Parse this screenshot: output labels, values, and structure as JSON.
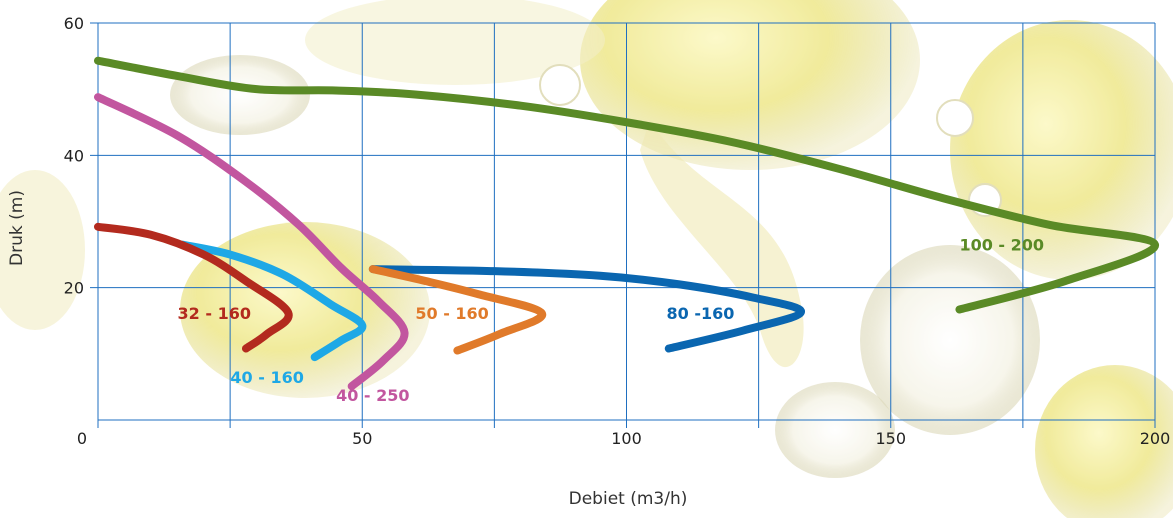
{
  "chart_data": {
    "type": "line",
    "title": "",
    "xlabel": "Debiet (m3/h)",
    "ylabel": "Druk (m)",
    "xlim": [
      0,
      200
    ],
    "ylim": [
      0,
      60
    ],
    "x_ticks": [
      0,
      50,
      100,
      150,
      200
    ],
    "y_ticks": [
      20,
      40,
      60
    ],
    "x_gridlines": [
      0,
      25,
      50,
      75,
      100,
      125,
      150,
      175,
      200
    ],
    "y_gridlines": [
      20,
      40,
      60
    ],
    "grid": true,
    "grid_color": "#1f6fc0",
    "series": [
      {
        "name": "100 - 200",
        "color": "#5a8a26",
        "points": [
          [
            0,
            54.3
          ],
          [
            15,
            52
          ],
          [
            30,
            50
          ],
          [
            45,
            49.8
          ],
          [
            60,
            49.2
          ],
          [
            80,
            47.5
          ],
          [
            100,
            45
          ],
          [
            120,
            42
          ],
          [
            140,
            38
          ],
          [
            160,
            33.5
          ],
          [
            180,
            29.5
          ],
          [
            200,
            26.5
          ],
          [
            183,
            21
          ],
          [
            163,
            16.7
          ]
        ]
      },
      {
        "name": "80 -160",
        "color": "#0a66b0",
        "points": [
          [
            52,
            22.8
          ],
          [
            75,
            22.5
          ],
          [
            95,
            21.8
          ],
          [
            110,
            20.5
          ],
          [
            124,
            18.5
          ],
          [
            133,
            16.3
          ],
          [
            122,
            13.5
          ],
          [
            108,
            10.8
          ]
        ]
      },
      {
        "name": "50 - 160",
        "color": "#e07a2a",
        "points": [
          [
            52,
            22.8
          ],
          [
            62,
            21
          ],
          [
            72,
            19
          ],
          [
            84,
            16.1
          ],
          [
            76,
            13
          ],
          [
            68,
            10.5
          ]
        ]
      },
      {
        "name": "40 - 250",
        "color": "#c2569f",
        "points": [
          [
            0,
            48.8
          ],
          [
            15,
            43
          ],
          [
            28,
            36
          ],
          [
            38,
            29.5
          ],
          [
            46,
            23
          ],
          [
            53,
            18
          ],
          [
            58,
            13.2
          ],
          [
            54,
            9
          ],
          [
            48,
            5.1
          ]
        ]
      },
      {
        "name": "40 - 160",
        "color": "#1ea8e6",
        "points": [
          [
            16,
            26.5
          ],
          [
            25,
            25
          ],
          [
            35,
            22
          ],
          [
            44,
            17.5
          ],
          [
            50,
            14.3
          ],
          [
            46,
            12
          ],
          [
            41,
            9.5
          ]
        ]
      },
      {
        "name": "32 - 160",
        "color": "#b32a1e",
        "points": [
          [
            0,
            29.2
          ],
          [
            10,
            28
          ],
          [
            20,
            25
          ],
          [
            28,
            21
          ],
          [
            36,
            16.2
          ],
          [
            32,
            13
          ],
          [
            28,
            10.8
          ]
        ]
      }
    ],
    "labels": [
      {
        "text": "100 - 200",
        "x": 171,
        "y": 26.5,
        "color": "#5a8a26"
      },
      {
        "text": "80 -160",
        "x": 114,
        "y": 16.2,
        "color": "#0a66b0"
      },
      {
        "text": "50 - 160",
        "x": 67,
        "y": 16.2,
        "color": "#e07a2a"
      },
      {
        "text": "40 - 250",
        "x": 52,
        "y": 3.8,
        "color": "#c2569f"
      },
      {
        "text": "40 - 160",
        "x": 32,
        "y": 6.5,
        "color": "#1ea8e6"
      },
      {
        "text": "32 - 160",
        "x": 22,
        "y": 16.2,
        "color": "#b32a1e"
      }
    ]
  }
}
